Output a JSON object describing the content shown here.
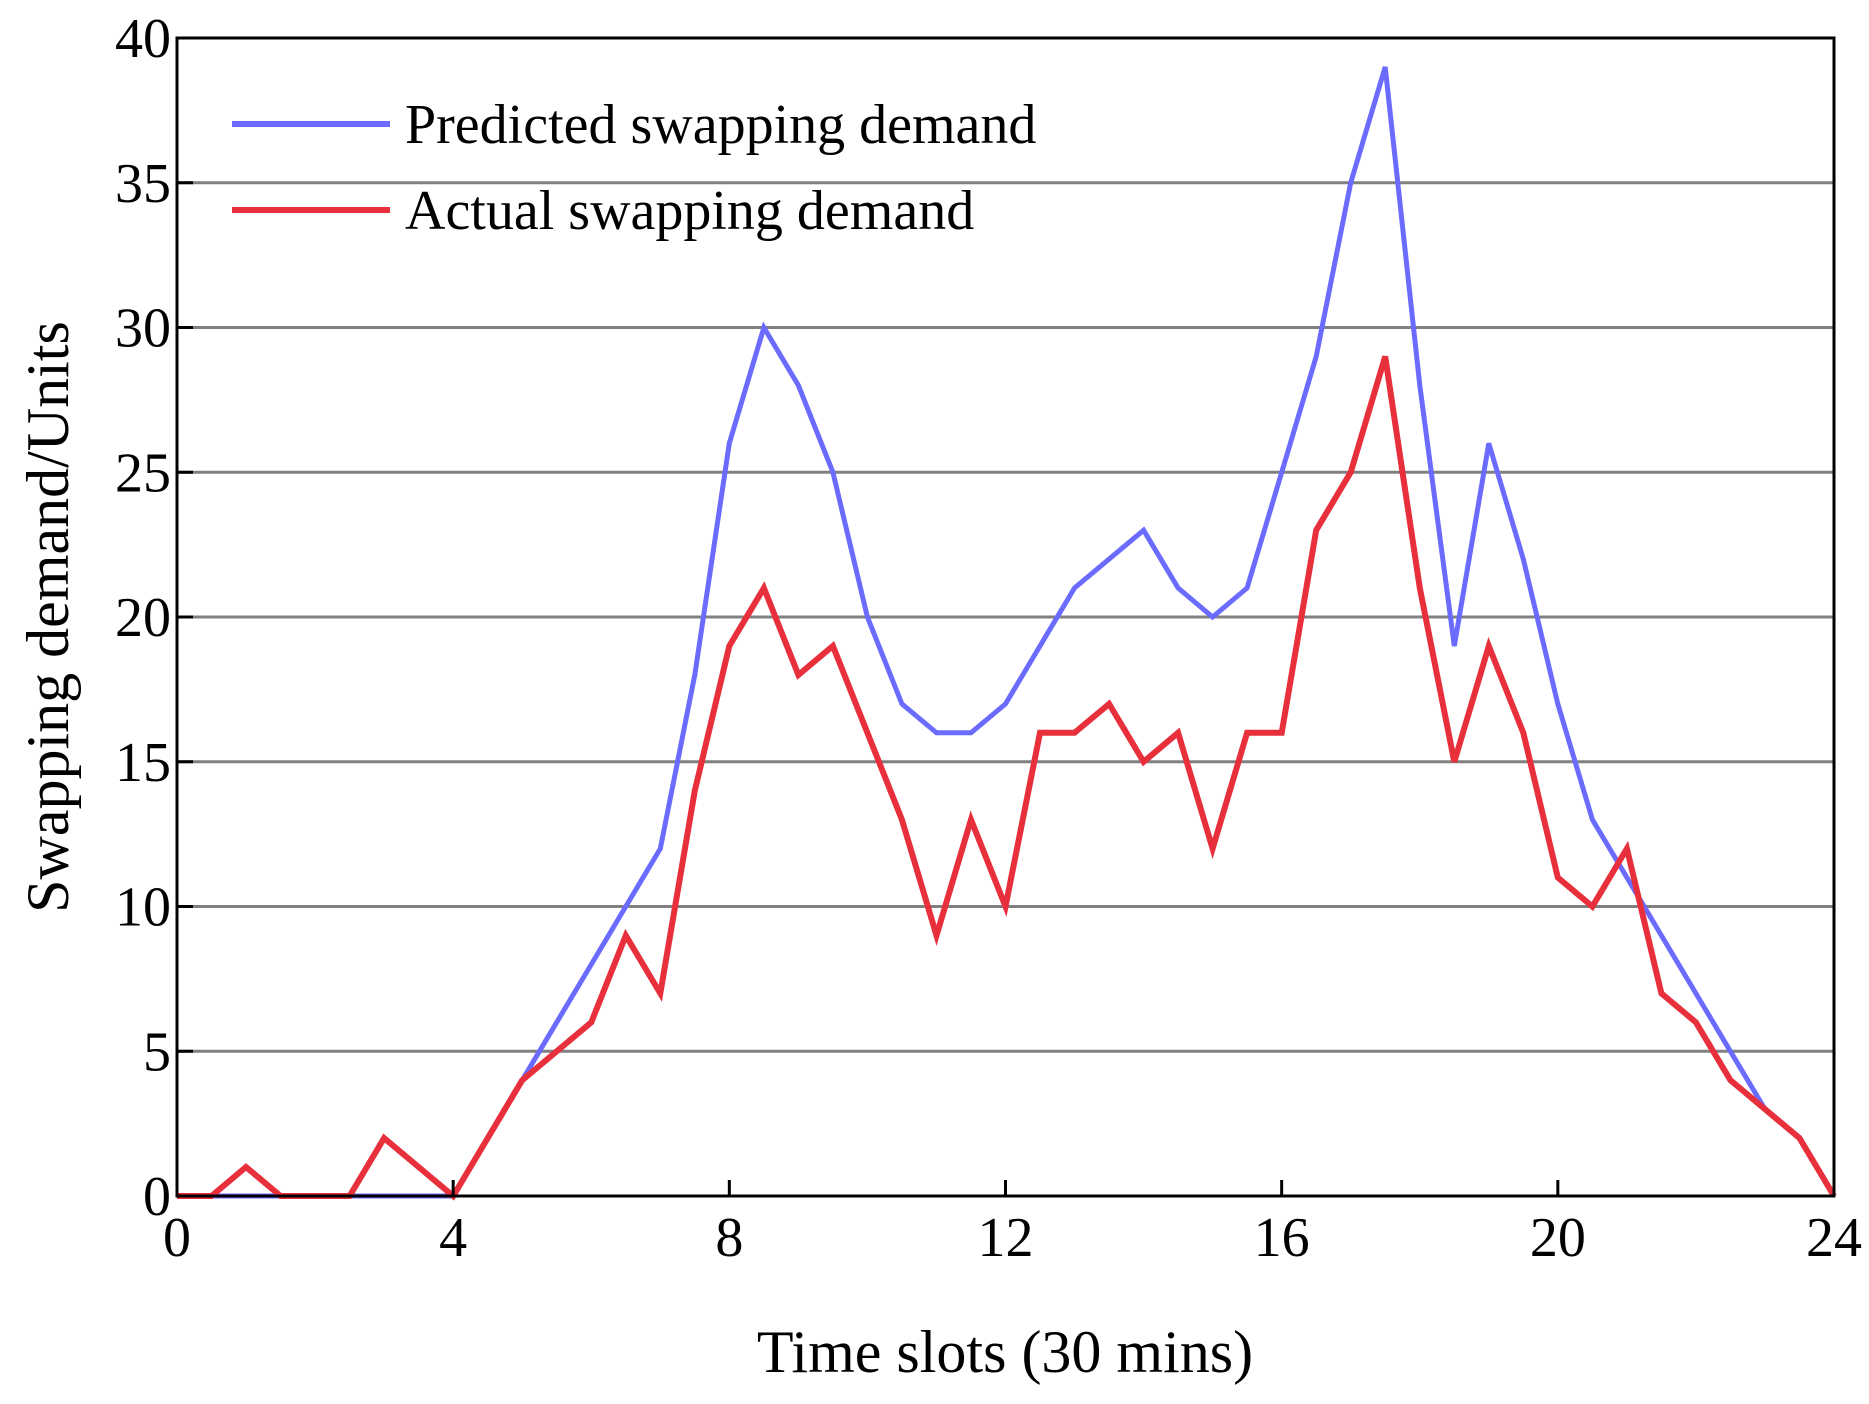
{
  "chart_data": {
    "type": "line",
    "title": "",
    "xlabel": "Time slots (30 mins)",
    "ylabel": "Swapping demand/Units",
    "xlim": [
      0,
      24
    ],
    "ylim": [
      0,
      40
    ],
    "x_ticks": [
      "0",
      "4",
      "8",
      "12",
      "16",
      "20",
      "24"
    ],
    "y_ticks": [
      "0",
      "5",
      "10",
      "15",
      "20",
      "25",
      "30",
      "35",
      "40"
    ],
    "grid": "horizontal",
    "legend_position": "top-left",
    "x": [
      0,
      0.5,
      1,
      1.5,
      2,
      2.5,
      3,
      3.5,
      4,
      4.5,
      5,
      5.5,
      6,
      6.5,
      7,
      7.5,
      8,
      8.5,
      9,
      9.5,
      10,
      10.5,
      11,
      11.5,
      12,
      12.5,
      13,
      13.5,
      14,
      14.5,
      15,
      15.5,
      16,
      16.5,
      17,
      17.5,
      18,
      18.5,
      19,
      19.5,
      20,
      20.5,
      21,
      21.5,
      22,
      22.5,
      23,
      23.5,
      24
    ],
    "series": [
      {
        "name": "Predicted swapping demand",
        "color": "#6b6bff",
        "values": [
          0,
          0,
          0,
          0,
          0,
          0,
          0,
          0,
          0,
          2,
          4,
          6,
          8,
          10,
          12,
          18,
          26,
          30,
          28,
          25,
          20,
          17,
          16,
          16,
          17,
          19,
          21,
          22,
          23,
          21,
          20,
          21,
          25,
          29,
          35,
          39,
          28,
          19,
          26,
          22,
          17,
          13,
          11,
          9,
          7,
          5,
          3,
          2,
          0
        ]
      },
      {
        "name": "Actual swapping demand",
        "color": "#e8303c",
        "values": [
          0,
          0,
          1,
          0,
          0,
          0,
          2,
          1,
          0,
          2,
          4,
          5,
          6,
          9,
          7,
          14,
          19,
          21,
          18,
          19,
          16,
          13,
          9,
          13,
          10,
          16,
          16,
          17,
          15,
          16,
          12,
          16,
          16,
          23,
          25,
          29,
          21,
          15,
          19,
          16,
          11,
          10,
          12,
          7,
          6,
          4,
          3,
          2,
          0
        ]
      }
    ],
    "baseline_color": "#1a1aa0"
  }
}
